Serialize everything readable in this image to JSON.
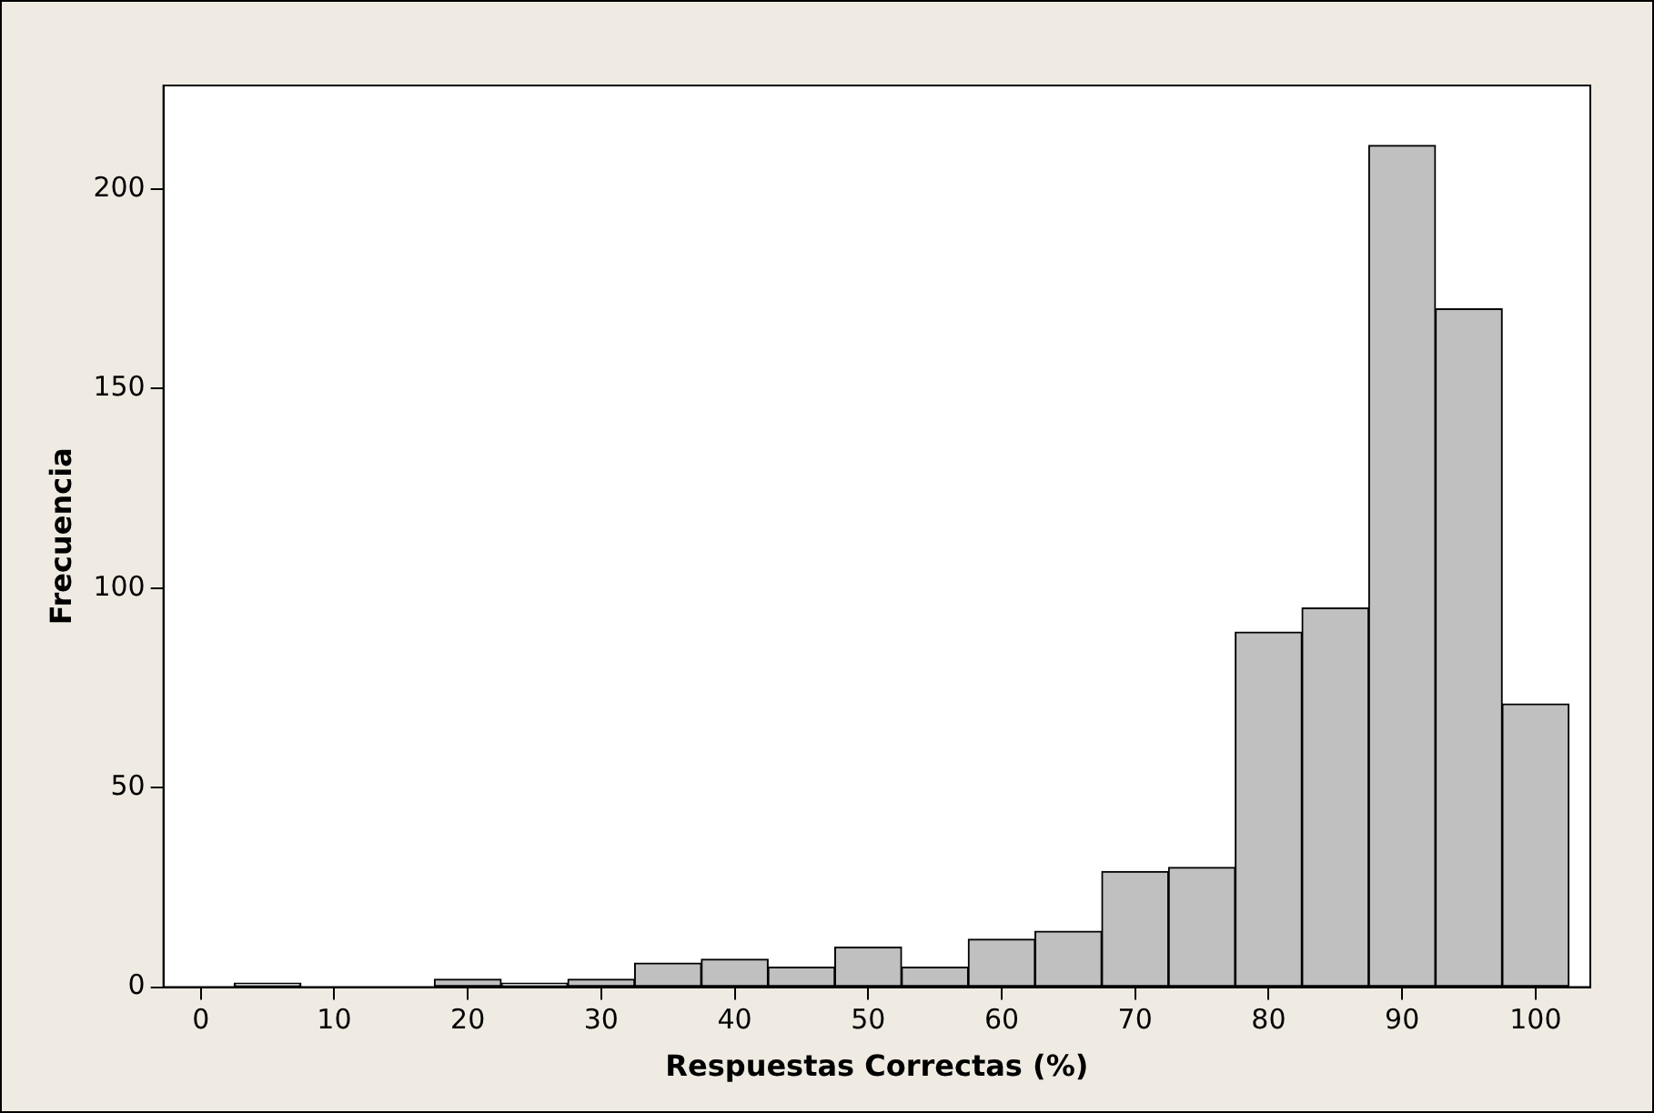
{
  "chart_data": {
    "type": "histogram",
    "xlabel": "Respuestas Correctas (%)",
    "ylabel": "Frecuencia",
    "bins": [
      2.5,
      7.5,
      12.5,
      17.5,
      22.5,
      27.5,
      32.5,
      37.5,
      42.5,
      47.5,
      52.5,
      57.5,
      62.5,
      67.5,
      72.5,
      77.5,
      82.5,
      87.5,
      92.5,
      97.5,
      102.5
    ],
    "values": [
      1,
      0,
      0,
      2,
      1,
      2,
      6,
      7,
      5,
      10,
      5,
      12,
      14,
      29,
      30,
      89,
      95,
      211,
      170,
      71
    ],
    "color": "#c0c0c0",
    "xlim": [
      -2.8,
      104.1
    ],
    "xticks": [
      0,
      10,
      20,
      30,
      40,
      50,
      60,
      70,
      80,
      90,
      100
    ],
    "ylim": [
      0,
      226
    ],
    "yticks": [
      0,
      50,
      100,
      150,
      200
    ],
    "grid": false,
    "legend": false
  }
}
